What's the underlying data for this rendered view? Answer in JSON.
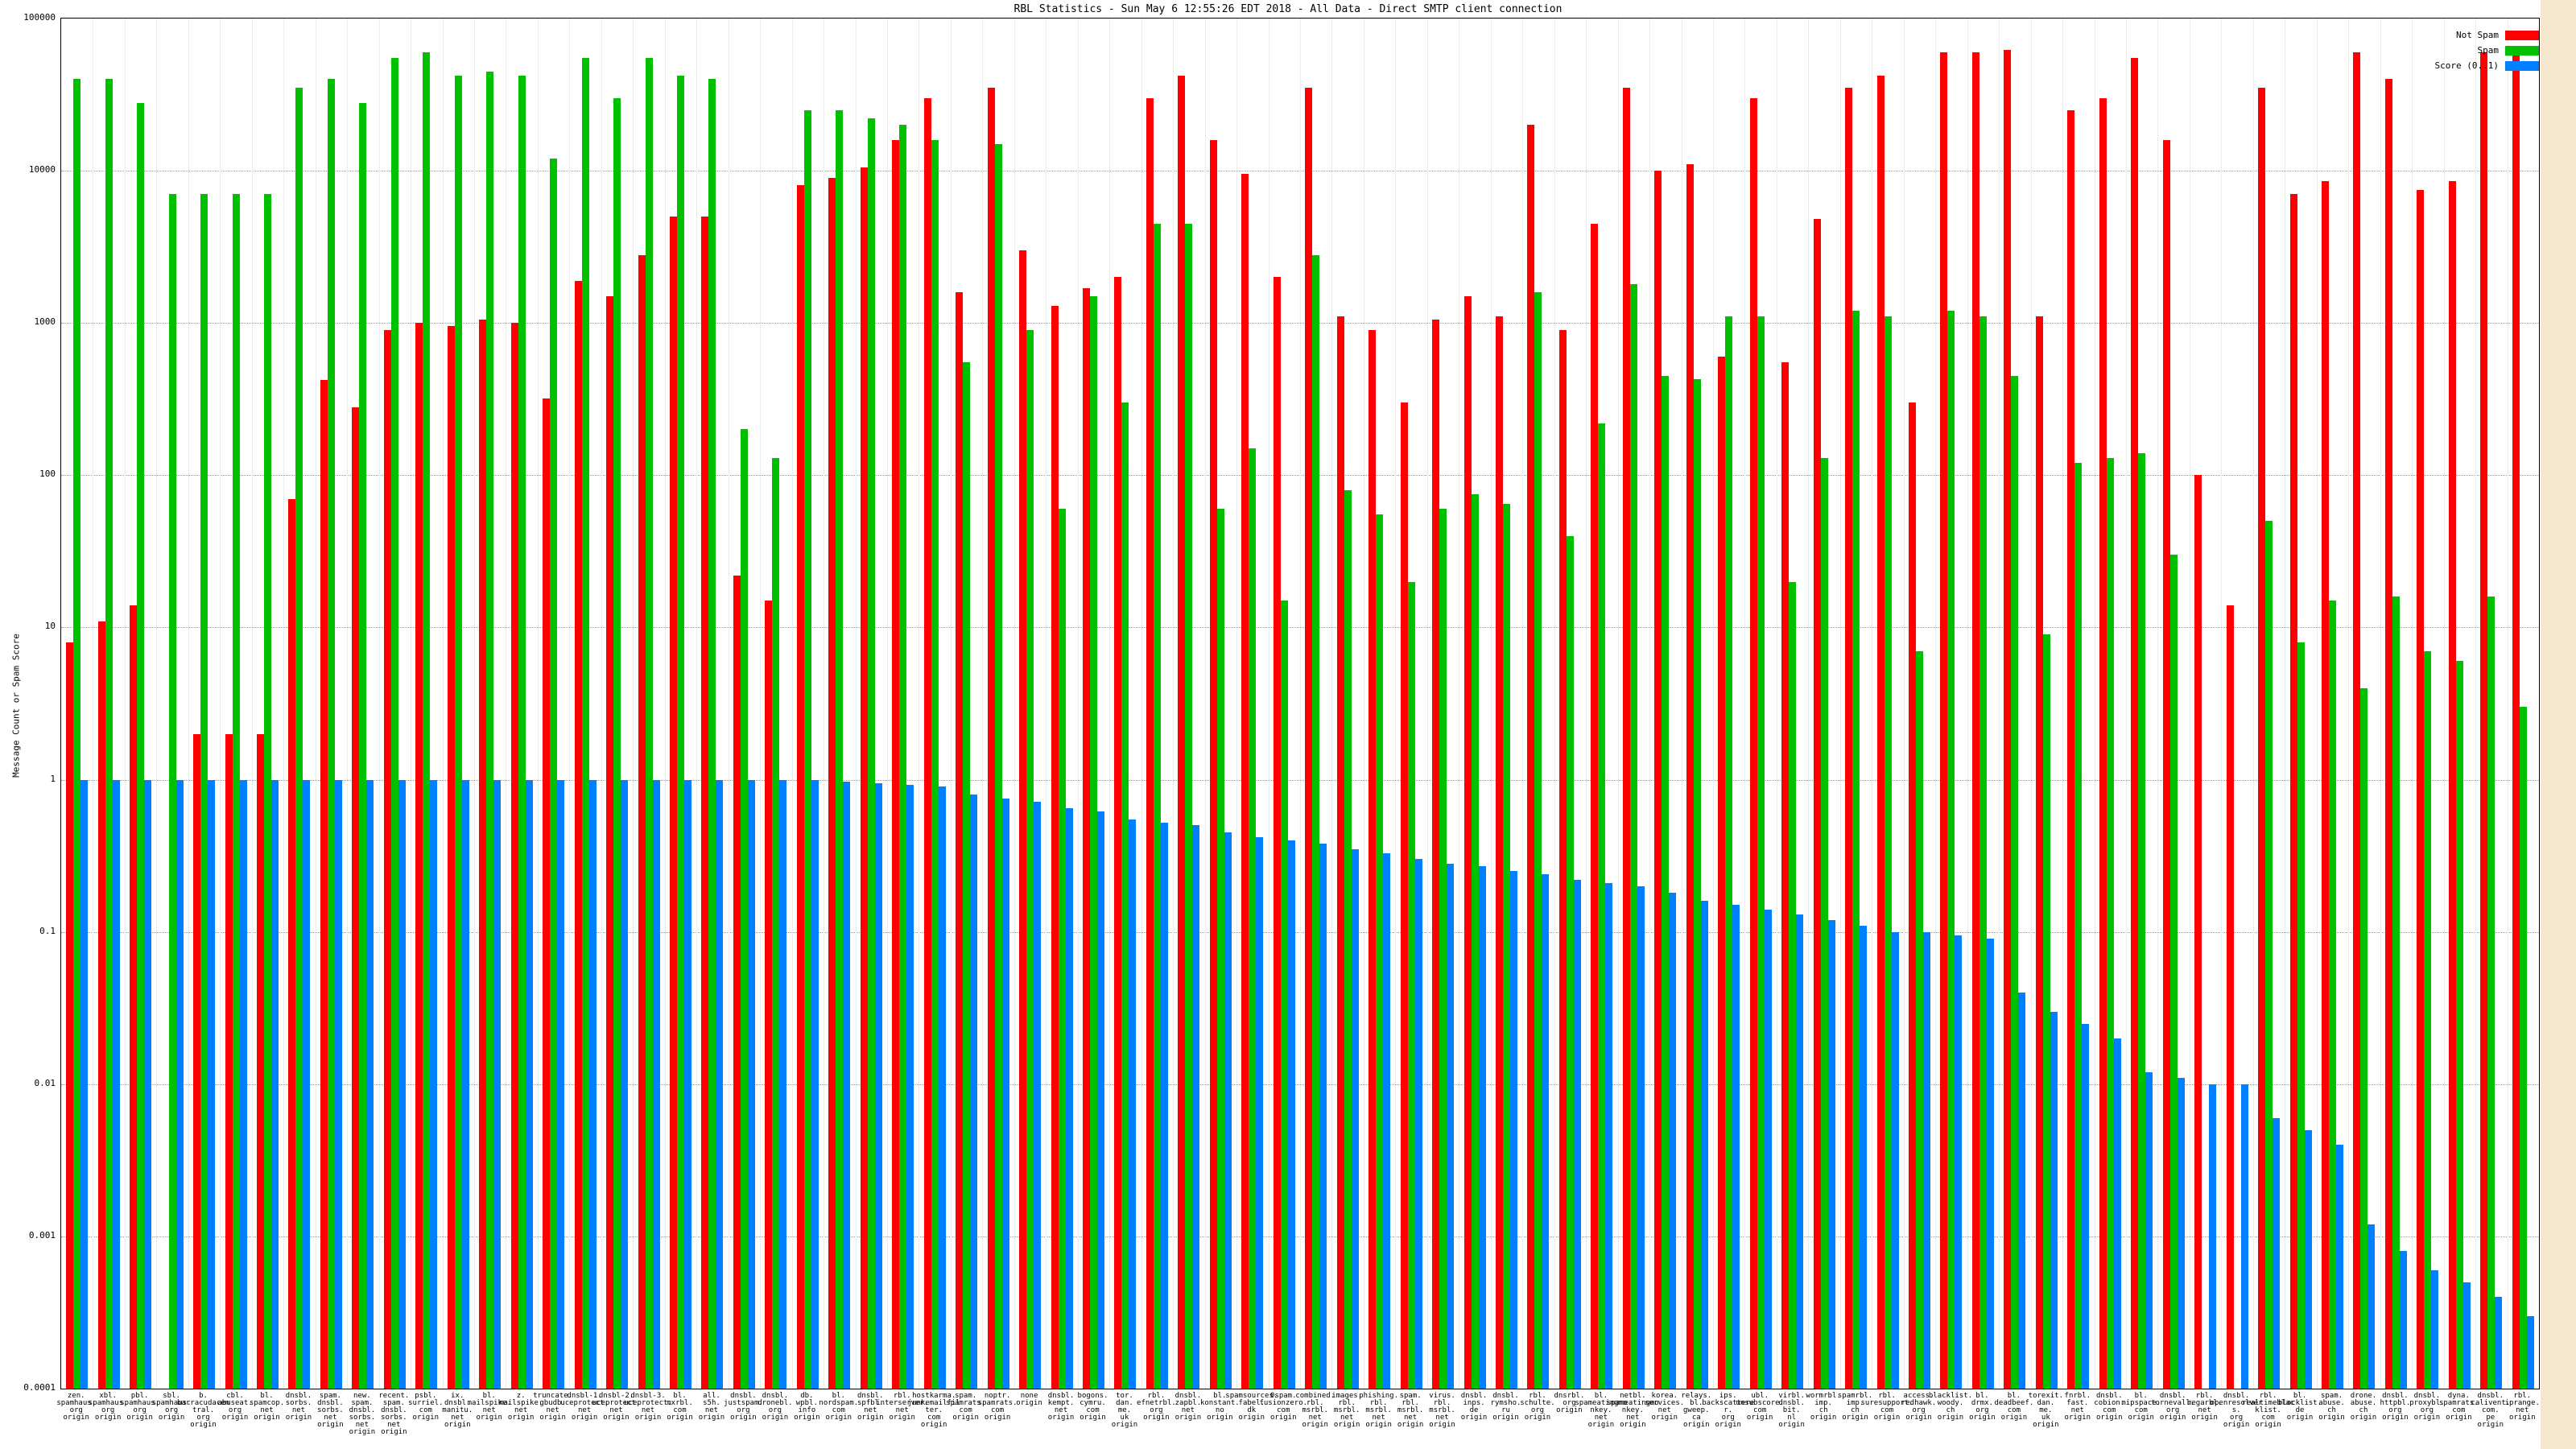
{
  "page": {
    "margin_color": "#f4e7cd",
    "plot_bg": "#ffffff"
  },
  "chart_data": {
    "type": "bar",
    "title": "RBL Statistics - Sun May 6 12:55:26 EDT 2018 - All Data - Direct SMTP client connection",
    "ylabel": "Message Count or Spam Score",
    "yscale": "log",
    "ylim": [
      0.0001,
      100000
    ],
    "grid": true,
    "y_ticks": [
      "100000",
      "10000",
      "1000",
      "100",
      "10",
      "1",
      "0.1",
      "0.01",
      "0.001",
      "0.0001"
    ],
    "x_suffix": "origin",
    "legend": {
      "position": "top-right",
      "entries": [
        {
          "label": "Not Spam",
          "color": "#ff0000"
        },
        {
          "label": "Spam",
          "color": "#00c000"
        },
        {
          "label": "Score (0..1)",
          "color": "#0080ff"
        }
      ]
    },
    "categories": [
      "zen.spamhaus.org",
      "xbl.spamhaus.org",
      "pbl.spamhaus.org",
      "sbl.spamhaus.org",
      "b.barracudacentral.org",
      "cbl.abuseat.org",
      "bl.spamcop.net",
      "dnsbl.sorbs.net",
      "spam.dnsbl.sorbs.net",
      "new.spam.dnsbl.sorbs.net",
      "recent.spam.dnsbl.sorbs.net",
      "psbl.surriel.com",
      "ix.dnsbl.manitu.net",
      "bl.mailspike.net",
      "z.mailspike.net",
      "truncate.gbudb.net",
      "dnsbl-1.uceprotect.net",
      "dnsbl-2.uceprotect.net",
      "dnsbl-3.uceprotect.net",
      "bl.mxrbl.com",
      "all.s5h.net",
      "dnsbl.justspam.org",
      "dnsbl.dronebl.org",
      "db.wpbl.info",
      "bl.nordspam.com",
      "dnsbl.spfbl.net",
      "rbl.interserver.net",
      "hostkarma.junkemailfilter.com",
      "spam.spamrats.com",
      "noptr.spamrats.com",
      "none",
      "dnsbl.kempt.net",
      "bogons.cymru.com",
      "tor.dan.me.uk",
      "rbl.efnetrbl.org",
      "dnsbl.zapbl.net",
      "bl.konstant.no",
      "spamsources.fabel.dk",
      "0spam.fusionzero.com",
      "combined.rbl.msrbl.net",
      "images.rbl.msrbl.net",
      "phishing.rbl.msrbl.net",
      "spam.rbl.msrbl.net",
      "virus.rbl.msrbl.net",
      "dnsbl.inps.de",
      "dnsbl.rymsho.ru",
      "rbl.schulte.org",
      "dnsrbl.org",
      "bl.spameatingmonkey.net",
      "netbl.spameatingmonkey.net",
      "korea.services.net",
      "relays.bl.gweep.ca",
      "ips.backscatterer.org",
      "ubl.unsubscore.com",
      "virbl.dnsbl.bit.nl",
      "wormrbl.imp.ch",
      "spamrbl.imp.ch",
      "rbl.suresupport.com",
      "access.redhawk.org",
      "blacklist.woody.ch",
      "bl.drmx.org",
      "bl.deadbeef.com",
      "torexit.dan.me.uk",
      "fnrbl.fast.net",
      "dnsbl.cobion.com",
      "bl.mipspace.com",
      "dnsbl.tornevall.org",
      "rbl.megarbl.net",
      "dnsbl.openresolvers.org",
      "rbl.realtimeblacklist.com",
      "bl.blocklist.de",
      "spam.abuse.ch",
      "drone.abuse.ch",
      "dnsbl.httpbl.org",
      "dnsbl.proxybl.org",
      "dyna.spamrats.com",
      "dnsbl.calivent.com.pe",
      "rbl.iprange.net"
    ],
    "series": [
      {
        "name": "Not Spam",
        "color": "#ff0000",
        "values": [
          8,
          11,
          14,
          0,
          2,
          2,
          2,
          70,
          420,
          280,
          900,
          1000,
          950,
          1050,
          1000,
          320,
          1900,
          1500,
          2800,
          5000,
          5000,
          22,
          15,
          8000,
          9000,
          10500,
          16000,
          30000,
          1600,
          35000,
          3000,
          1300,
          1700,
          2000,
          30000,
          42000,
          16000,
          9500,
          2000,
          35000,
          1100,
          900,
          300,
          1050,
          1500,
          1100,
          20000,
          900,
          4500,
          35000,
          10000,
          11000,
          600,
          30000,
          550,
          4800,
          35000,
          42000,
          300,
          60000,
          60000,
          62000,
          1100,
          25000,
          30000,
          55000,
          16000,
          100,
          14,
          35000,
          7000,
          8500,
          60000,
          40000,
          7500,
          8500,
          60000,
          60000
        ]
      },
      {
        "name": "Spam",
        "color": "#00c000",
        "values": [
          40000,
          40000,
          28000,
          7000,
          7000,
          7000,
          7000,
          35000,
          40000,
          28000,
          55000,
          60000,
          42000,
          45000,
          42000,
          12000,
          55000,
          30000,
          55000,
          42000,
          40000,
          200,
          130,
          25000,
          25000,
          22000,
          20000,
          16000,
          550,
          15000,
          900,
          60,
          1500,
          300,
          4500,
          4500,
          60,
          150,
          15,
          2800,
          80,
          55,
          20,
          60,
          75,
          65,
          1600,
          40,
          220,
          1800,
          450,
          430,
          1100,
          1100,
          20,
          130,
          1200,
          1100,
          7,
          1200,
          1100,
          450,
          9,
          120,
          130,
          140,
          30,
          0,
          0,
          50,
          8,
          15,
          4,
          16,
          7,
          6,
          16,
          3
        ]
      },
      {
        "name": "Score (0..1)",
        "color": "#0080ff",
        "values": [
          1,
          1,
          1,
          1,
          1,
          1,
          1,
          1,
          1,
          1,
          1,
          1,
          1,
          1,
          1,
          1,
          1,
          1,
          1,
          1,
          1,
          1,
          1,
          1,
          0.97,
          0.95,
          0.93,
          0.9,
          0.8,
          0.75,
          0.72,
          0.65,
          0.62,
          0.55,
          0.52,
          0.5,
          0.45,
          0.42,
          0.4,
          0.38,
          0.35,
          0.33,
          0.3,
          0.28,
          0.27,
          0.25,
          0.24,
          0.22,
          0.21,
          0.2,
          0.18,
          0.16,
          0.15,
          0.14,
          0.13,
          0.12,
          0.11,
          0.1,
          0.1,
          0.095,
          0.09,
          0.04,
          0.03,
          0.025,
          0.02,
          0.012,
          0.011,
          0.01,
          0.01,
          0.006,
          0.005,
          0.004,
          0.0012,
          0.0008,
          0.0006,
          0.0005,
          0.0004,
          0.0003
        ]
      }
    ]
  }
}
